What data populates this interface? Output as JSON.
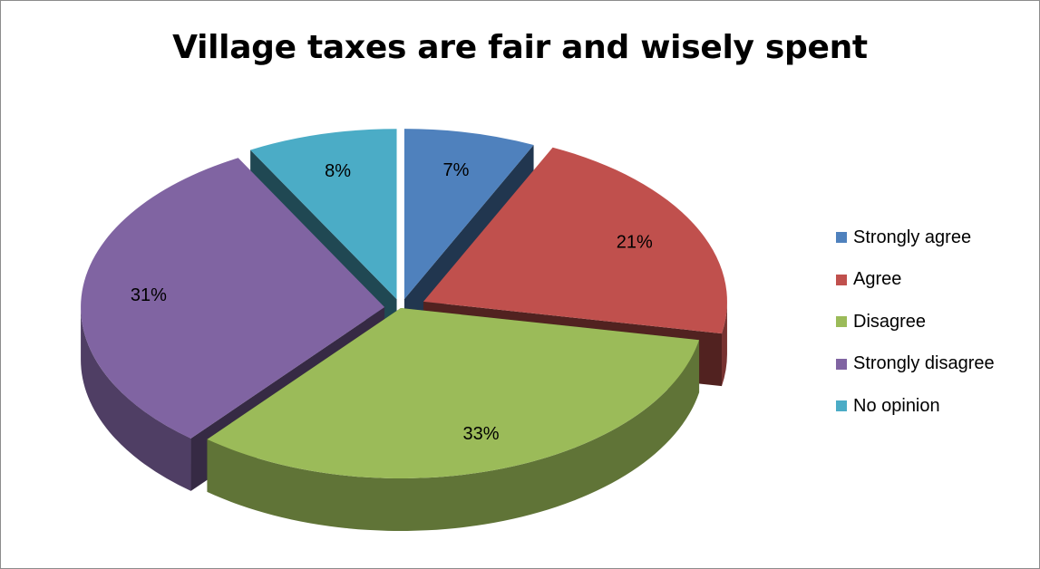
{
  "chart_data": {
    "type": "pie",
    "title": "Village taxes are fair and wisely spent",
    "categories": [
      "Strongly agree",
      "Agree",
      "Disagree",
      "Strongly disagree",
      "No opinion"
    ],
    "values": [
      7,
      21,
      33,
      31,
      8
    ],
    "data_labels": [
      "7%",
      "21%",
      "33%",
      "31%",
      "8%"
    ],
    "colors": [
      "#4f81bd",
      "#c0504d",
      "#9bbb59",
      "#8064a2",
      "#4bacc6"
    ],
    "exploded": true,
    "three_d": true,
    "legend_position": "right"
  }
}
